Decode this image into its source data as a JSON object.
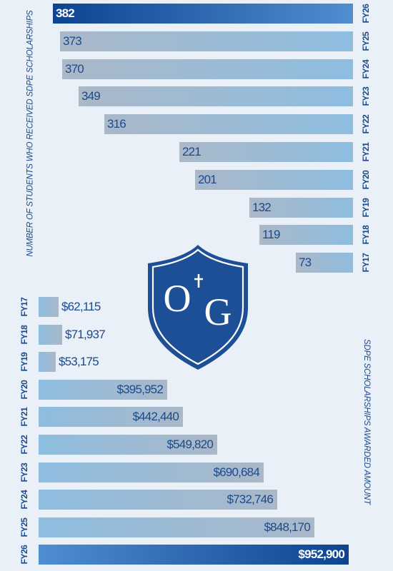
{
  "colors": {
    "background": "#eaf0f8",
    "bar_light": "#8ebde0",
    "bar_gray": "#aab8c8",
    "highlight_dark": "#0d4391",
    "highlight_light": "#4f8ed0",
    "text_blue": "#1b4a8c",
    "crest_navy": "#1d4f96"
  },
  "logo": {
    "text": "OG"
  },
  "chart_data": [
    {
      "type": "bar",
      "orientation": "horizontal",
      "ylabel": "NUMBER OF STUDENTS WHO RECEIVED SDPE SCHOLARSHIPS",
      "categories": [
        "FY26",
        "FY25",
        "FY24",
        "FY23",
        "FY22",
        "FY21",
        "FY20",
        "FY19",
        "FY18",
        "FY17"
      ],
      "values": [
        382,
        373,
        370,
        349,
        316,
        221,
        201,
        132,
        119,
        73
      ],
      "labels": [
        "382",
        "373",
        "370",
        "349",
        "316",
        "221",
        "201",
        "132",
        "119",
        "73"
      ],
      "highlight": "FY26",
      "bar_direction": "grows-left-from-right",
      "category_label_side": "right"
    },
    {
      "type": "bar",
      "orientation": "horizontal",
      "ylabel": "SDPE SCHOLARSHIPS AWARDED AMOUNT",
      "categories": [
        "FY17",
        "FY18",
        "FY19",
        "FY20",
        "FY21",
        "FY22",
        "FY23",
        "FY24",
        "FY25",
        "FY26"
      ],
      "values": [
        62115,
        71937,
        53175,
        395952,
        442440,
        549820,
        690684,
        732746,
        848170,
        952900
      ],
      "labels": [
        "$62,115",
        "$71,937",
        "$53,175",
        "$395,952",
        "$442,440",
        "$549,820",
        "$690,684",
        "$732,746",
        "$848,170",
        "$952,900"
      ],
      "highlight": "FY26",
      "bar_direction": "grows-right-from-left",
      "category_label_side": "left"
    }
  ]
}
